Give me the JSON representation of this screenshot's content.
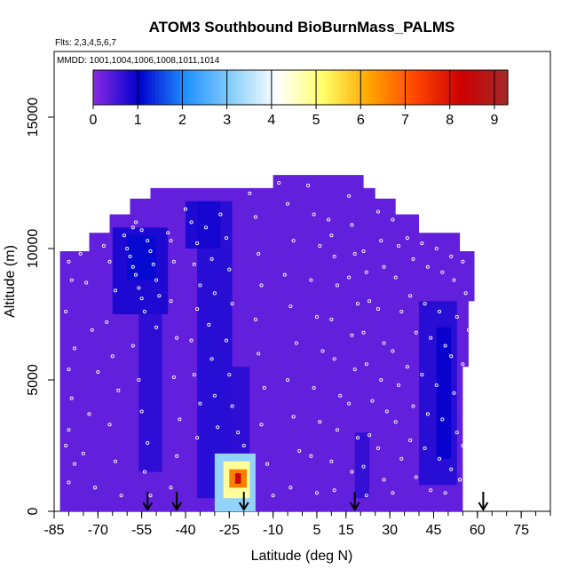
{
  "chart_data": {
    "type": "heatmap",
    "title": "ATOM3 Southbound BioBurnMass_PALMS",
    "subtitle_flights": "Flts: 2,3,4,5,6,7",
    "subtitle_dates": "MMDD: 1001,1004,1006,1008,1011,1014",
    "xlabel": "Latitude (deg N)",
    "ylabel": "Altitude (m)",
    "xlim": [
      -85,
      85
    ],
    "ylim": [
      0,
      17500
    ],
    "x_tick_labels": [
      "-85",
      "-70",
      "-55",
      "-40",
      "-25",
      "-10",
      "5",
      "15",
      "30",
      "45",
      "60",
      "75"
    ],
    "x_tick_values": [
      -85,
      -70,
      -55,
      -40,
      -25,
      -10,
      5,
      15,
      30,
      45,
      60,
      75
    ],
    "y_ticks": [
      0,
      5000,
      10000,
      15000
    ],
    "y_tick_labels": [
      "0",
      "5000",
      "10000",
      "15000"
    ],
    "colorbar": {
      "min": 0,
      "max": 9.3,
      "ticks": [
        0,
        1,
        2,
        3,
        4,
        5,
        6,
        7,
        8,
        9
      ],
      "tick_labels": [
        "0",
        "1",
        "2",
        "3",
        "4",
        "5",
        "6",
        "7",
        "8",
        "9"
      ],
      "colors": [
        "#8a2be2",
        "#0000cd",
        "#1e90ff",
        "#87cefa",
        "#ffffff",
        "#ffff66",
        "#ffa500",
        "#ff4500",
        "#cc0000",
        "#a52a2a"
      ]
    },
    "background_value": 0.3,
    "outline": [
      [
        -83,
        0
      ],
      [
        -83,
        9900
      ],
      [
        -73,
        9900
      ],
      [
        -73,
        10600
      ],
      [
        -66,
        10600
      ],
      [
        -66,
        11300
      ],
      [
        -59,
        11300
      ],
      [
        -59,
        11900
      ],
      [
        -52,
        11900
      ],
      [
        -52,
        12300
      ],
      [
        -10,
        12300
      ],
      [
        -10,
        12800
      ],
      [
        21,
        12800
      ],
      [
        21,
        12300
      ],
      [
        25,
        12300
      ],
      [
        25,
        11900
      ],
      [
        32,
        11900
      ],
      [
        32,
        11300
      ],
      [
        40,
        11300
      ],
      [
        40,
        10600
      ],
      [
        54,
        10600
      ],
      [
        54,
        9900
      ],
      [
        59,
        9900
      ],
      [
        59,
        8000
      ],
      [
        57,
        8000
      ],
      [
        57,
        5500
      ],
      [
        55,
        5500
      ],
      [
        55,
        0
      ]
    ],
    "features": [
      {
        "name": "south-upper-plume",
        "lat": [
          -65,
          -46
        ],
        "alt": [
          7500,
          10800
        ],
        "value": 0.9
      },
      {
        "name": "south-upper-core",
        "lat": [
          -60,
          -50
        ],
        "alt": [
          8800,
          10500
        ],
        "value": 1.1
      },
      {
        "name": "south-mid-column",
        "lat": [
          -56,
          -48
        ],
        "alt": [
          1500,
          7500
        ],
        "value": 0.75
      },
      {
        "name": "central-column",
        "lat": [
          -36,
          -24
        ],
        "alt": [
          500,
          11800
        ],
        "value": 0.8
      },
      {
        "name": "central-upper",
        "lat": [
          -40,
          -28
        ],
        "alt": [
          10000,
          11800
        ],
        "value": 0.9
      },
      {
        "name": "lower-column",
        "lat": [
          -24,
          -18
        ],
        "alt": [
          1200,
          5500
        ],
        "value": 0.75
      },
      {
        "name": "north-column",
        "lat": [
          40,
          53
        ],
        "alt": [
          1000,
          8000
        ],
        "value": 0.8
      },
      {
        "name": "north-core",
        "lat": [
          46,
          51
        ],
        "alt": [
          2000,
          7000
        ],
        "value": 1.0
      },
      {
        "name": "mid-column",
        "lat": [
          18,
          23
        ],
        "alt": [
          500,
          3000
        ],
        "value": 0.7
      },
      {
        "name": "plume-halo",
        "lat": [
          -30,
          -16
        ],
        "alt": [
          0,
          2200
        ],
        "value": 3.2
      },
      {
        "name": "plume-mid",
        "lat": [
          -27,
          -18
        ],
        "alt": [
          500,
          1900
        ],
        "value": 4.8
      },
      {
        "name": "plume-inner",
        "lat": [
          -25,
          -19
        ],
        "alt": [
          900,
          1600
        ],
        "value": 6.6
      },
      {
        "name": "plume-core",
        "lat": [
          -23,
          -21
        ],
        "alt": [
          1050,
          1450
        ],
        "value": 8.4
      }
    ],
    "arrow_latitudes": [
      -53,
      -43,
      -20,
      18,
      62
    ],
    "samples": [
      [
        -80,
        9500
      ],
      [
        -79,
        8800
      ],
      [
        -81,
        7600
      ],
      [
        -78,
        6200
      ],
      [
        -80,
        5400
      ],
      [
        -79,
        4300
      ],
      [
        -80,
        3100
      ],
      [
        -81,
        2500
      ],
      [
        -78,
        1800
      ],
      [
        -80,
        1100
      ],
      [
        -76,
        9800
      ],
      [
        -74,
        8700
      ],
      [
        -72,
        6900
      ],
      [
        -70,
        5300
      ],
      [
        -73,
        3700
      ],
      [
        -75,
        2200
      ],
      [
        -71,
        900
      ],
      [
        -68,
        10100
      ],
      [
        -66,
        9500
      ],
      [
        -64,
        8400
      ],
      [
        -67,
        7200
      ],
      [
        -65,
        5900
      ],
      [
        -63,
        4600
      ],
      [
        -66,
        3300
      ],
      [
        -64,
        1900
      ],
      [
        -62,
        600
      ],
      [
        -61,
        10500
      ],
      [
        -60,
        10000
      ],
      [
        -59,
        9700
      ],
      [
        -58,
        9300
      ],
      [
        -57,
        9000
      ],
      [
        -56,
        8500
      ],
      [
        -55,
        8100
      ],
      [
        -54,
        7600
      ],
      [
        -58,
        6300
      ],
      [
        -56,
        5000
      ],
      [
        -55,
        3800
      ],
      [
        -53,
        2600
      ],
      [
        -54,
        1500
      ],
      [
        -52,
        600
      ],
      [
        -58,
        10800
      ],
      [
        -57,
        11000
      ],
      [
        -55,
        10700
      ],
      [
        -53,
        10300
      ],
      [
        -52,
        9900
      ],
      [
        -51,
        9400
      ],
      [
        -50,
        8800
      ],
      [
        -49,
        8200
      ],
      [
        -50,
        7000
      ],
      [
        -46,
        10600
      ],
      [
        -45,
        10300
      ],
      [
        -44,
        9500
      ],
      [
        -45,
        8000
      ],
      [
        -43,
        6600
      ],
      [
        -44,
        5100
      ],
      [
        -42,
        3500
      ],
      [
        -43,
        2100
      ],
      [
        -45,
        900
      ],
      [
        -40,
        11500
      ],
      [
        -38,
        11000
      ],
      [
        -36,
        10200
      ],
      [
        -37,
        9400
      ],
      [
        -35,
        8600
      ],
      [
        -36,
        7700
      ],
      [
        -38,
        6500
      ],
      [
        -37,
        5200
      ],
      [
        -35,
        4100
      ],
      [
        -36,
        2800
      ],
      [
        -33,
        10800
      ],
      [
        -31,
        9600
      ],
      [
        -30,
        8300
      ],
      [
        -32,
        7100
      ],
      [
        -31,
        5800
      ],
      [
        -30,
        4400
      ],
      [
        -29,
        3200
      ],
      [
        -28,
        11300
      ],
      [
        -26,
        10400
      ],
      [
        -25,
        9200
      ],
      [
        -24,
        7900
      ],
      [
        -26,
        6500
      ],
      [
        -25,
        5200
      ],
      [
        -24,
        4000
      ],
      [
        -22,
        3000
      ],
      [
        -20,
        2500
      ],
      [
        -18,
        12100
      ],
      [
        -16,
        11200
      ],
      [
        -15,
        9800
      ],
      [
        -14,
        8600
      ],
      [
        -16,
        7300
      ],
      [
        -15,
        6000
      ],
      [
        -13,
        4700
      ],
      [
        -14,
        3300
      ],
      [
        -12,
        1800
      ],
      [
        -10,
        600
      ],
      [
        -8,
        12500
      ],
      [
        -5,
        11700
      ],
      [
        -3,
        10300
      ],
      [
        -6,
        9000
      ],
      [
        -4,
        7800
      ],
      [
        -2,
        6400
      ],
      [
        -5,
        5000
      ],
      [
        -3,
        3600
      ],
      [
        -1,
        2300
      ],
      [
        -4,
        900
      ],
      [
        2,
        12400
      ],
      [
        4,
        11300
      ],
      [
        6,
        10100
      ],
      [
        3,
        8800
      ],
      [
        5,
        7400
      ],
      [
        7,
        6100
      ],
      [
        4,
        4700
      ],
      [
        6,
        3400
      ],
      [
        3,
        2100
      ],
      [
        5,
        700
      ],
      [
        9,
        11100
      ],
      [
        10,
        10500
      ],
      [
        11,
        9700
      ],
      [
        12,
        8600
      ],
      [
        10,
        7300
      ],
      [
        11,
        5800
      ],
      [
        13,
        4400
      ],
      [
        12,
        3100
      ],
      [
        10,
        1900
      ],
      [
        11,
        800
      ],
      [
        16,
        12000
      ],
      [
        17,
        10900
      ],
      [
        18,
        9800
      ],
      [
        16,
        8900
      ],
      [
        19,
        7900
      ],
      [
        17,
        6700
      ],
      [
        18,
        5400
      ],
      [
        16,
        4100
      ],
      [
        19,
        2800
      ],
      [
        17,
        1500
      ],
      [
        21,
        9900
      ],
      [
        22,
        9100
      ],
      [
        23,
        8000
      ],
      [
        21,
        6800
      ],
      [
        22,
        5600
      ],
      [
        24,
        4200
      ],
      [
        23,
        2900
      ],
      [
        21,
        1700
      ],
      [
        22,
        600
      ],
      [
        26,
        11400
      ],
      [
        27,
        10300
      ],
      [
        28,
        9300
      ],
      [
        26,
        7700
      ],
      [
        28,
        6400
      ],
      [
        27,
        5000
      ],
      [
        29,
        3800
      ],
      [
        26,
        2400
      ],
      [
        28,
        1200
      ],
      [
        31,
        11100
      ],
      [
        33,
        10100
      ],
      [
        32,
        8900
      ],
      [
        34,
        7600
      ],
      [
        31,
        6100
      ],
      [
        33,
        4800
      ],
      [
        32,
        3400
      ],
      [
        34,
        2000
      ],
      [
        31,
        700
      ],
      [
        36,
        10400
      ],
      [
        38,
        9600
      ],
      [
        37,
        8200
      ],
      [
        39,
        6800
      ],
      [
        36,
        5500
      ],
      [
        38,
        4000
      ],
      [
        37,
        2700
      ],
      [
        39,
        1300
      ],
      [
        41,
        10200
      ],
      [
        43,
        9300
      ],
      [
        42,
        7900
      ],
      [
        44,
        6600
      ],
      [
        41,
        5200
      ],
      [
        43,
        3700
      ],
      [
        42,
        2400
      ],
      [
        44,
        800
      ],
      [
        46,
        10000
      ],
      [
        48,
        9100
      ],
      [
        47,
        7600
      ],
      [
        49,
        6300
      ],
      [
        46,
        4800
      ],
      [
        48,
        3500
      ],
      [
        47,
        2000
      ],
      [
        49,
        700
      ],
      [
        51,
        9700
      ],
      [
        52,
        8800
      ],
      [
        53,
        7400
      ],
      [
        51,
        5900
      ],
      [
        52,
        4500
      ],
      [
        53,
        3000
      ],
      [
        51,
        1600
      ],
      [
        55,
        9500
      ],
      [
        56,
        8300
      ],
      [
        57,
        6900
      ],
      [
        55,
        5600
      ],
      [
        56,
        4100
      ],
      [
        55,
        2500
      ],
      [
        54,
        1200
      ]
    ]
  }
}
